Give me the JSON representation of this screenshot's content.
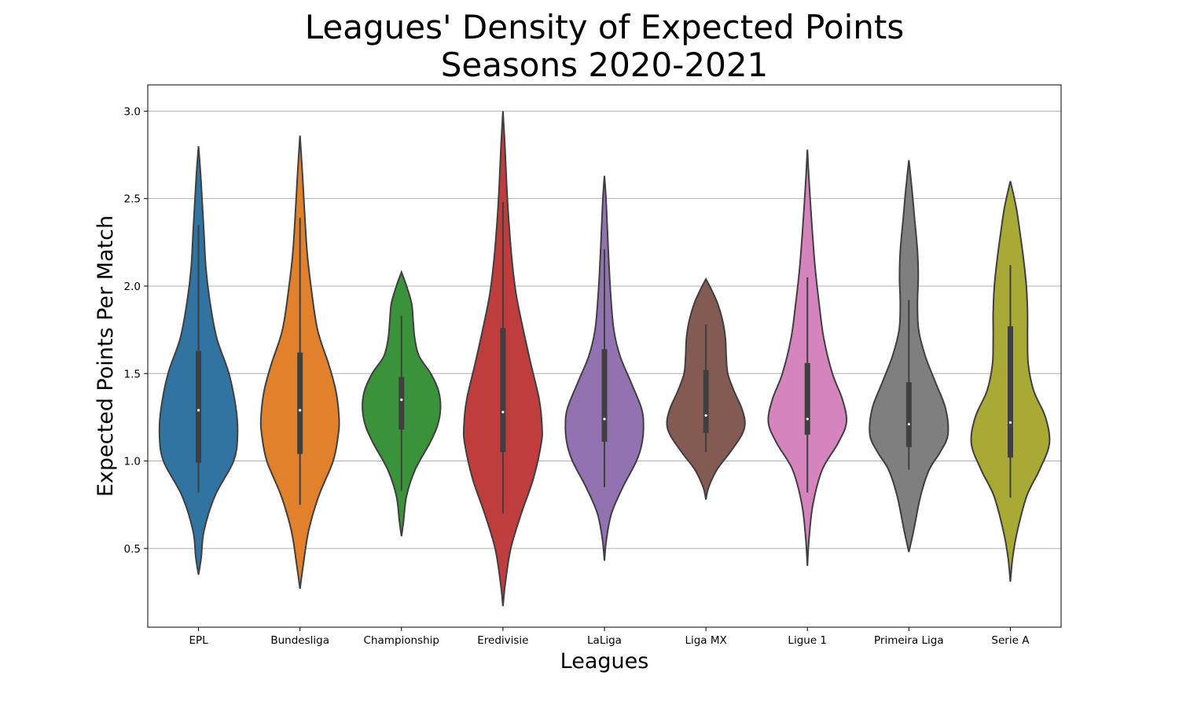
{
  "chart_data": {
    "type": "violin",
    "title": "Leagues' Density of Expected Points",
    "subtitle": "Seasons 2020-2021",
    "xlabel": "Leagues",
    "ylabel": "Expected Points Per Match",
    "ylim": [
      0.05,
      3.15
    ],
    "yticks": [
      "0.5",
      "1.0",
      "1.5",
      "2.0",
      "2.5",
      "3.0"
    ],
    "grid": "horizontal",
    "categories": [
      "EPL",
      "Bundesliga",
      "Championship",
      "Eredivisie",
      "LaLiga",
      "Liga MX",
      "Ligue 1",
      "Primeira Liga",
      "Serie A"
    ],
    "colors": [
      "#3274a1",
      "#e1812c",
      "#3a923a",
      "#c03d3e",
      "#9372b2",
      "#845b53",
      "#d684bd",
      "#7f7f7f",
      "#a9aa35"
    ],
    "series": [
      {
        "min": 0.35,
        "max": 2.8,
        "q1": 0.99,
        "median": 1.29,
        "q3": 1.63,
        "whisker_low": 0.82,
        "whisker_high": 2.35,
        "density": [
          [
            0.35,
            0.0
          ],
          [
            0.45,
            0.07
          ],
          [
            0.6,
            0.14
          ],
          [
            0.8,
            0.42
          ],
          [
            1.0,
            0.9
          ],
          [
            1.15,
            1.0
          ],
          [
            1.3,
            0.96
          ],
          [
            1.5,
            0.78
          ],
          [
            1.7,
            0.47
          ],
          [
            1.9,
            0.3
          ],
          [
            2.1,
            0.19
          ],
          [
            2.3,
            0.14
          ],
          [
            2.5,
            0.09
          ],
          [
            2.65,
            0.05
          ],
          [
            2.8,
            0.0
          ]
        ]
      },
      {
        "min": 0.27,
        "max": 2.86,
        "q1": 1.04,
        "median": 1.29,
        "q3": 1.62,
        "whisker_low": 0.75,
        "whisker_high": 2.39,
        "density": [
          [
            0.27,
            0.0
          ],
          [
            0.4,
            0.08
          ],
          [
            0.6,
            0.22
          ],
          [
            0.8,
            0.48
          ],
          [
            1.0,
            0.85
          ],
          [
            1.15,
            0.98
          ],
          [
            1.25,
            1.0
          ],
          [
            1.4,
            0.92
          ],
          [
            1.55,
            0.74
          ],
          [
            1.75,
            0.45
          ],
          [
            2.0,
            0.28
          ],
          [
            2.2,
            0.18
          ],
          [
            2.45,
            0.11
          ],
          [
            2.65,
            0.06
          ],
          [
            2.86,
            0.0
          ]
        ]
      },
      {
        "min": 0.57,
        "max": 2.08,
        "q1": 1.18,
        "median": 1.35,
        "q3": 1.48,
        "whisker_low": 0.83,
        "whisker_high": 1.83,
        "density": [
          [
            0.57,
            0.0
          ],
          [
            0.65,
            0.05
          ],
          [
            0.8,
            0.13
          ],
          [
            0.95,
            0.35
          ],
          [
            1.1,
            0.72
          ],
          [
            1.2,
            0.92
          ],
          [
            1.3,
            1.0
          ],
          [
            1.4,
            0.95
          ],
          [
            1.5,
            0.75
          ],
          [
            1.6,
            0.45
          ],
          [
            1.7,
            0.34
          ],
          [
            1.8,
            0.3
          ],
          [
            1.9,
            0.26
          ],
          [
            2.0,
            0.13
          ],
          [
            2.08,
            0.0
          ]
        ]
      },
      {
        "min": 0.17,
        "max": 3.0,
        "q1": 1.05,
        "median": 1.28,
        "q3": 1.76,
        "whisker_low": 0.7,
        "whisker_high": 2.48,
        "density": [
          [
            0.17,
            0.0
          ],
          [
            0.3,
            0.06
          ],
          [
            0.5,
            0.2
          ],
          [
            0.7,
            0.47
          ],
          [
            0.9,
            0.78
          ],
          [
            1.1,
            0.98
          ],
          [
            1.2,
            1.0
          ],
          [
            1.35,
            0.93
          ],
          [
            1.55,
            0.72
          ],
          [
            1.75,
            0.52
          ],
          [
            1.95,
            0.34
          ],
          [
            2.15,
            0.23
          ],
          [
            2.4,
            0.14
          ],
          [
            2.6,
            0.09
          ],
          [
            2.8,
            0.05
          ],
          [
            3.0,
            0.0
          ]
        ]
      },
      {
        "min": 0.43,
        "max": 2.63,
        "q1": 1.11,
        "median": 1.24,
        "q3": 1.64,
        "whisker_low": 0.85,
        "whisker_high": 2.21,
        "density": [
          [
            0.43,
            0.0
          ],
          [
            0.55,
            0.05
          ],
          [
            0.7,
            0.18
          ],
          [
            0.85,
            0.47
          ],
          [
            1.0,
            0.82
          ],
          [
            1.1,
            0.96
          ],
          [
            1.2,
            1.0
          ],
          [
            1.3,
            0.95
          ],
          [
            1.45,
            0.68
          ],
          [
            1.6,
            0.4
          ],
          [
            1.75,
            0.24
          ],
          [
            1.95,
            0.16
          ],
          [
            2.15,
            0.11
          ],
          [
            2.35,
            0.07
          ],
          [
            2.5,
            0.04
          ],
          [
            2.63,
            0.0
          ]
        ]
      },
      {
        "min": 0.78,
        "max": 2.04,
        "q1": 1.16,
        "median": 1.26,
        "q3": 1.52,
        "whisker_low": 1.05,
        "whisker_high": 1.78,
        "density": [
          [
            0.78,
            0.0
          ],
          [
            0.85,
            0.07
          ],
          [
            0.95,
            0.28
          ],
          [
            1.05,
            0.62
          ],
          [
            1.15,
            0.92
          ],
          [
            1.22,
            1.0
          ],
          [
            1.3,
            0.92
          ],
          [
            1.4,
            0.72
          ],
          [
            1.5,
            0.56
          ],
          [
            1.6,
            0.52
          ],
          [
            1.7,
            0.5
          ],
          [
            1.8,
            0.43
          ],
          [
            1.9,
            0.3
          ],
          [
            1.98,
            0.14
          ],
          [
            2.04,
            0.0
          ]
        ]
      },
      {
        "min": 0.4,
        "max": 2.78,
        "q1": 1.15,
        "median": 1.24,
        "q3": 1.56,
        "whisker_low": 0.82,
        "whisker_high": 2.05,
        "density": [
          [
            0.4,
            0.0
          ],
          [
            0.55,
            0.04
          ],
          [
            0.75,
            0.14
          ],
          [
            0.95,
            0.38
          ],
          [
            1.1,
            0.78
          ],
          [
            1.22,
            1.0
          ],
          [
            1.35,
            0.9
          ],
          [
            1.5,
            0.64
          ],
          [
            1.7,
            0.42
          ],
          [
            1.9,
            0.3
          ],
          [
            2.1,
            0.2
          ],
          [
            2.3,
            0.13
          ],
          [
            2.5,
            0.07
          ],
          [
            2.65,
            0.03
          ],
          [
            2.78,
            0.0
          ]
        ]
      },
      {
        "min": 0.48,
        "max": 2.72,
        "q1": 1.08,
        "median": 1.21,
        "q3": 1.45,
        "whisker_low": 0.95,
        "whisker_high": 1.92,
        "density": [
          [
            0.48,
            0.0
          ],
          [
            0.6,
            0.12
          ],
          [
            0.8,
            0.3
          ],
          [
            0.95,
            0.52
          ],
          [
            1.05,
            0.8
          ],
          [
            1.15,
            1.0
          ],
          [
            1.3,
            0.94
          ],
          [
            1.45,
            0.68
          ],
          [
            1.6,
            0.42
          ],
          [
            1.75,
            0.25
          ],
          [
            1.9,
            0.22
          ],
          [
            2.05,
            0.24
          ],
          [
            2.2,
            0.22
          ],
          [
            2.4,
            0.14
          ],
          [
            2.55,
            0.08
          ],
          [
            2.72,
            0.0
          ]
        ]
      },
      {
        "min": 0.31,
        "max": 2.6,
        "q1": 1.02,
        "median": 1.22,
        "q3": 1.77,
        "whisker_low": 0.79,
        "whisker_high": 2.12,
        "density": [
          [
            0.31,
            0.0
          ],
          [
            0.45,
            0.06
          ],
          [
            0.6,
            0.18
          ],
          [
            0.8,
            0.42
          ],
          [
            0.95,
            0.75
          ],
          [
            1.1,
            1.0
          ],
          [
            1.25,
            0.9
          ],
          [
            1.4,
            0.6
          ],
          [
            1.55,
            0.46
          ],
          [
            1.7,
            0.44
          ],
          [
            1.85,
            0.44
          ],
          [
            2.0,
            0.41
          ],
          [
            2.15,
            0.34
          ],
          [
            2.3,
            0.25
          ],
          [
            2.45,
            0.15
          ],
          [
            2.6,
            0.0
          ]
        ]
      }
    ]
  }
}
